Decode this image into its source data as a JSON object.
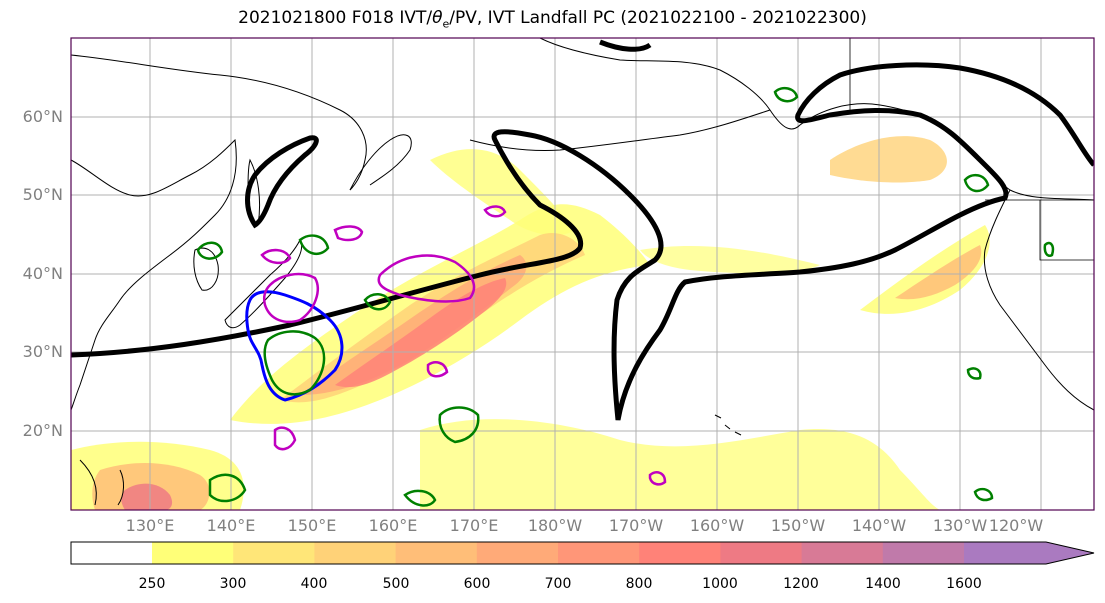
{
  "title": "2021021800 F018 IVT/θe/PV, IVT Landfall PC (2021022100 - 2021022300)",
  "title_parts": {
    "prefix": "2021021800 F018 IVT/",
    "theta": "θ",
    "sub": "e",
    "suffix": "/PV, IVT Landfall PC (2021022100 - 2021022300)"
  },
  "lat_labels": [
    "60°N",
    "50°N",
    "40°N",
    "30°N",
    "20°N"
  ],
  "lon_labels": [
    "130°E",
    "140°E",
    "150°E",
    "160°E",
    "170°E",
    "180°W",
    "170°W",
    "160°W",
    "150°W",
    "140°W",
    "130°W",
    "120°W"
  ],
  "colorbar": {
    "levels": [
      "250",
      "300",
      "400",
      "500",
      "600",
      "700",
      "800",
      "1000",
      "1200",
      "1400",
      "1600"
    ],
    "colors": [
      "#ffff78",
      "#ffe678",
      "#ffd278",
      "#ffbe78",
      "#ffaa78",
      "#ff9678",
      "#ff8278",
      "#ee7a84",
      "#d87a96",
      "#c07aaa",
      "#aa7ac0"
    ],
    "extend": "max"
  },
  "colors": {
    "pc_contour": "#000000",
    "theta_e_contour": "#008000",
    "pv_contour": "#0000ff",
    "magenta_contour": "#c000c0",
    "grid": "#b0b0b0",
    "coastline": "#000000",
    "frame": "#500050"
  }
}
